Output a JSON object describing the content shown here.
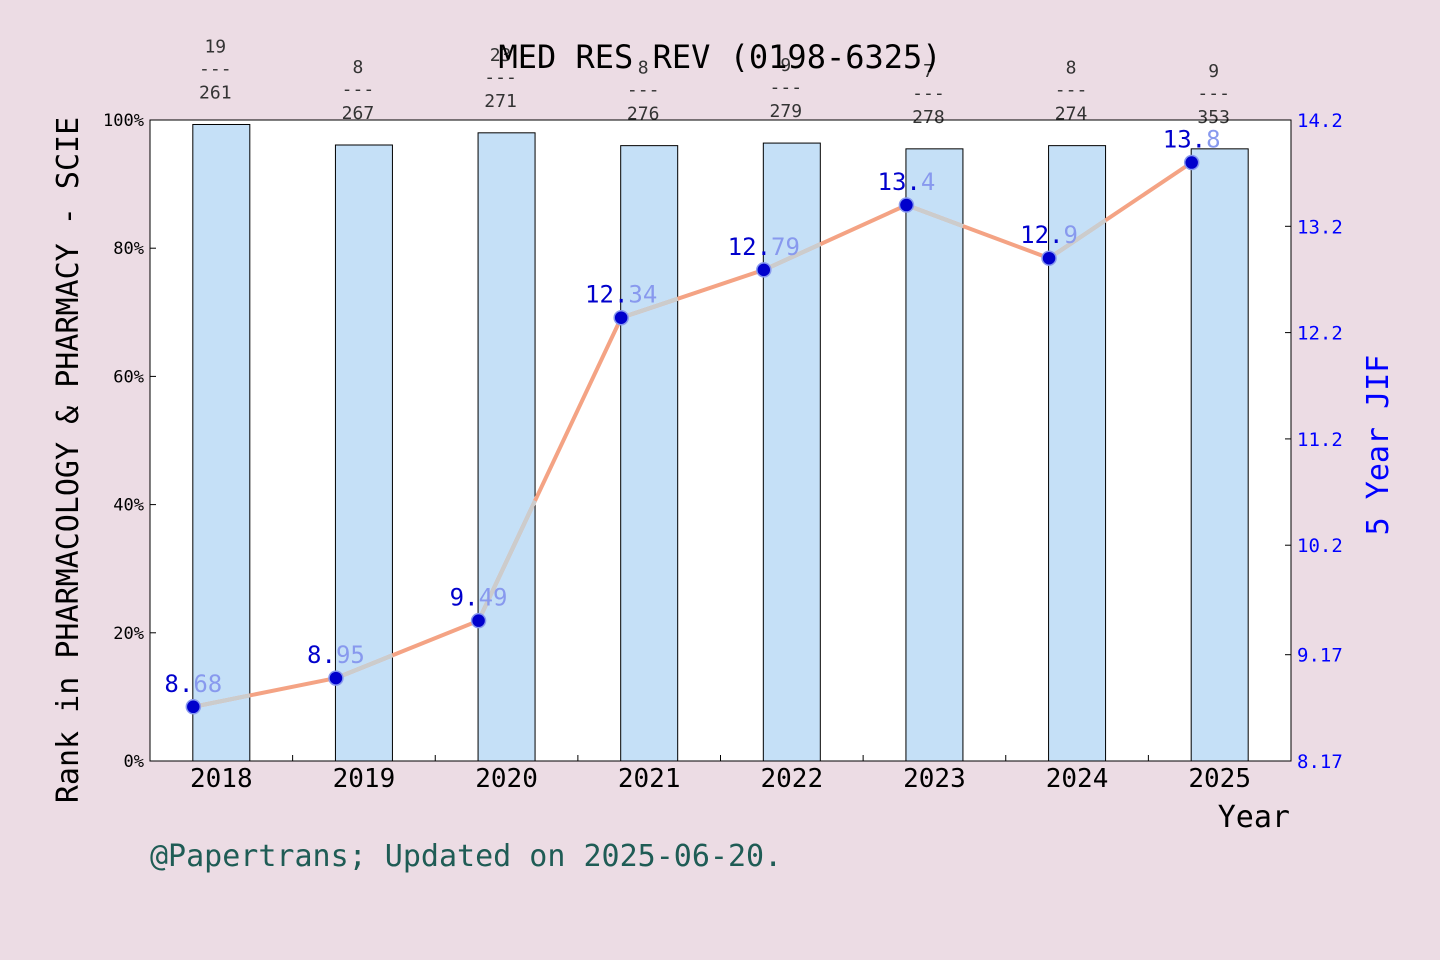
{
  "chart_data": {
    "type": "bar",
    "title": "MED RES REV (0198-6325)",
    "categories": [
      "2018",
      "2019",
      "2020",
      "2021",
      "2022",
      "2023",
      "2024",
      "2025"
    ],
    "xlabel": "Year",
    "ylabel_left": "Rank in PHARMACOLOGY & PHARMACY - SCIE",
    "ylabel_right": "5 Year JIF",
    "left_axis": {
      "range": [
        0,
        100
      ],
      "ticks": [
        0,
        20,
        40,
        60,
        80,
        100
      ],
      "tick_labels": [
        "0%",
        "20%",
        "40%",
        "60%",
        "80%",
        "100%"
      ]
    },
    "right_axis": {
      "range": [
        8.17,
        14.2
      ],
      "ticks": [
        8.17,
        9.17,
        10.2,
        11.2,
        12.2,
        13.2,
        14.2
      ],
      "tick_labels": [
        "8.17",
        "9.17",
        "10.2",
        "11.2",
        "12.2",
        "13.2",
        "14.2"
      ]
    },
    "rank_percentile": [
      99.3,
      96.1,
      98.0,
      96.0,
      96.4,
      95.5,
      96.0,
      95.5
    ],
    "rank_labels": [
      {
        "rank": "19",
        "total": "261"
      },
      {
        "rank": "8",
        "total": "267"
      },
      {
        "rank": "23",
        "total": "271"
      },
      {
        "rank": "8",
        "total": "276"
      },
      {
        "rank": "9",
        "total": "279"
      },
      {
        "rank": "7",
        "total": "278"
      },
      {
        "rank": "8",
        "total": "274"
      },
      {
        "rank": "9",
        "total": "353"
      }
    ],
    "rank_separator": "---",
    "jif_values": [
      8.68,
      8.95,
      9.49,
      12.34,
      12.79,
      13.4,
      12.9,
      13.8
    ],
    "jif_labels": [
      "8.68",
      "8.95",
      "9.49",
      "12.34",
      "12.79",
      "13.4",
      "12.9",
      "13.8"
    ],
    "grid": false,
    "colors": {
      "background": "#ecdce4",
      "plot_background": "#ffffff",
      "bar_fill": "#c5e0f7",
      "line": "#f4a384",
      "line_overlap": "#cccccc",
      "marker": "#0000cc",
      "label_dark": "#0000cc",
      "label_light": "#8899ee",
      "right_axis": "#0000ff",
      "footer": "#1f5c55"
    }
  },
  "footer": "@Papertrans; Updated on 2025-06-20."
}
